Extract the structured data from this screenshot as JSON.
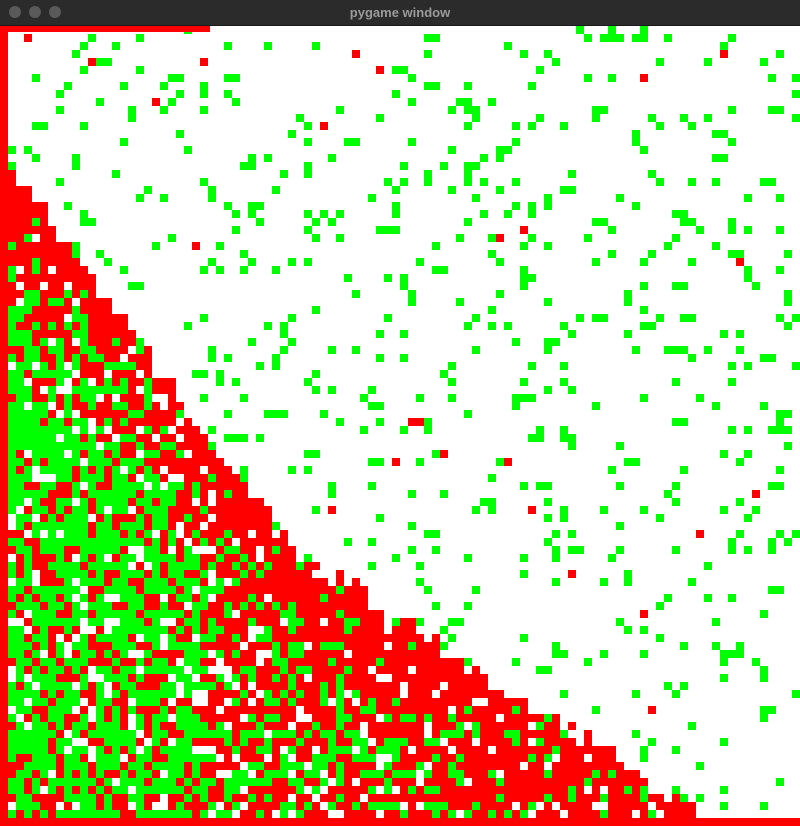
{
  "window": {
    "title": "pygame window"
  },
  "game": {
    "colors": {
      "background": "#ffffff",
      "red": "#ff0000",
      "green": "#00ff00"
    }
  }
}
